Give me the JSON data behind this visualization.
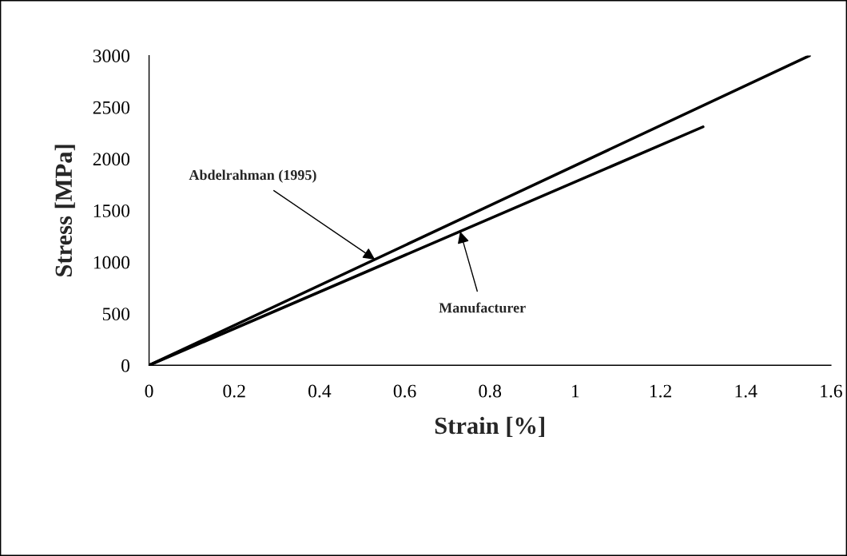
{
  "chart_data": {
    "type": "line",
    "xlabel": "Strain [%]",
    "ylabel": "Stress [MPa]",
    "series": [
      {
        "color": "#000000",
        "x": [
          0,
          1.55
        ],
        "values": [
          0,
          3000
        ]
      },
      {
        "color": "#000000",
        "x": [
          0,
          1.3
        ],
        "values": [
          0,
          2310
        ]
      }
    ],
    "annotations": [
      {
        "text": "Abdelrahman (1995)",
        "x": 0.53,
        "y": 1025
      },
      {
        "text": "Manufacturer",
        "x": 0.73,
        "y": 1297
      }
    ],
    "xlim": [
      0,
      1.6
    ],
    "ylim": [
      0,
      3000
    ],
    "xticks": [
      0,
      0.2,
      0.4,
      0.6,
      0.8,
      1,
      1.2,
      1.4,
      1.6
    ],
    "yticks": [
      0,
      500,
      1000,
      1500,
      2000,
      2500,
      3000
    ],
    "grid": false,
    "legend": false,
    "marker": "none",
    "line_style": "solid"
  }
}
